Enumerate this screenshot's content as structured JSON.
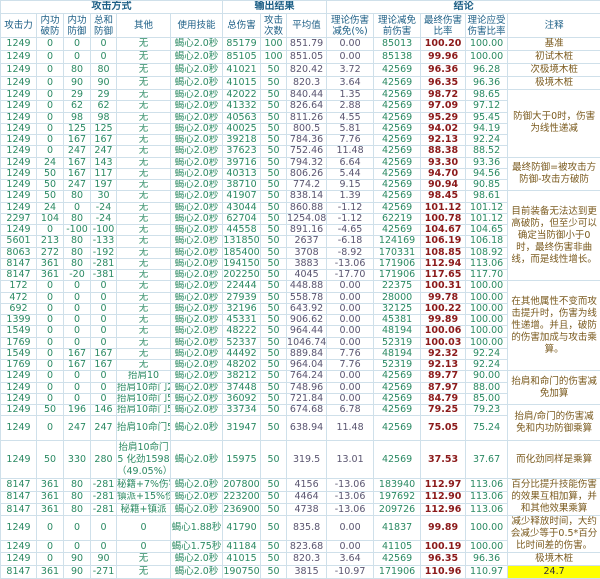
{
  "header": {
    "groups": [
      "攻击方式",
      "输出结果",
      "结论"
    ],
    "columns": [
      "攻击力",
      "内功破防",
      "内功防御",
      "总和防御",
      "其他",
      "使用技能",
      "总伤害",
      "攻击次数",
      "平均值",
      "理论伤害减免(%)",
      "理论减免前伤害",
      "最终伤害比率",
      "理论应受伤害比率",
      "注释"
    ]
  },
  "colors": {
    "header_text": "#1d5f86",
    "data_text": "#2b8a63",
    "final_ratio": "#8b1a1a",
    "note_text": "#7a5a1e",
    "highlight": "#ffff00"
  },
  "rows": [
    [
      "1249",
      "0",
      "0",
      "0",
      "无",
      "蝎心2.0秒",
      "85179",
      "100",
      "851.79",
      "0.00",
      "85013",
      "100.20",
      "100.00"
    ],
    [
      "1249",
      "0",
      "0",
      "0",
      "无",
      "蝎心2.0秒",
      "85105",
      "100",
      "851.05",
      "0.00",
      "85138",
      "99.96",
      "100.00"
    ],
    [
      "1249",
      "0",
      "80",
      "80",
      "无",
      "蝎心2.0秒",
      "41021",
      "50",
      "820.42",
      "3.72",
      "42569",
      "96.36",
      "96.28"
    ],
    [
      "1249",
      "0",
      "90",
      "90",
      "无",
      "蝎心2.0秒",
      "41015",
      "50",
      "820.3",
      "3.64",
      "42569",
      "96.35",
      "96.36"
    ],
    [
      "1249",
      "0",
      "29",
      "29",
      "无",
      "蝎心2.0秒",
      "42022",
      "50",
      "840.44",
      "1.35",
      "42569",
      "98.72",
      "98.65"
    ],
    [
      "1249",
      "0",
      "62",
      "62",
      "无",
      "蝎心2.0秒",
      "41332",
      "50",
      "826.64",
      "2.88",
      "42569",
      "97.09",
      "97.12"
    ],
    [
      "1249",
      "0",
      "98",
      "98",
      "无",
      "蝎心2.0秒",
      "40563",
      "50",
      "811.26",
      "4.55",
      "42569",
      "95.29",
      "95.45"
    ],
    [
      "1249",
      "0",
      "125",
      "125",
      "无",
      "蝎心2.0秒",
      "40025",
      "50",
      "800.5",
      "5.81",
      "42569",
      "94.02",
      "94.19"
    ],
    [
      "1249",
      "0",
      "167",
      "167",
      "无",
      "蝎心2.0秒",
      "39218",
      "50",
      "784.36",
      "7.76",
      "42569",
      "92.13",
      "92.24"
    ],
    [
      "1249",
      "0",
      "247",
      "247",
      "无",
      "蝎心2.0秒",
      "37623",
      "50",
      "752.46",
      "11.48",
      "42569",
      "88.38",
      "88.52"
    ],
    [
      "1249",
      "24",
      "167",
      "143",
      "无",
      "蝎心2.0秒",
      "39716",
      "50",
      "794.32",
      "6.64",
      "42569",
      "93.30",
      "93.36"
    ],
    [
      "1249",
      "50",
      "167",
      "117",
      "无",
      "蝎心2.0秒",
      "40313",
      "50",
      "806.26",
      "5.44",
      "42569",
      "94.70",
      "94.56"
    ],
    [
      "1249",
      "50",
      "247",
      "197",
      "无",
      "蝎心2.0秒",
      "38710",
      "50",
      "774.2",
      "9.15",
      "42569",
      "90.94",
      "90.85"
    ],
    [
      "1249",
      "50",
      "80",
      "30",
      "无",
      "蝎心2.0秒",
      "41907",
      "50",
      "838.14",
      "1.39",
      "42569",
      "98.45",
      "98.61"
    ],
    [
      "1249",
      "24",
      "0",
      "-24",
      "无",
      "蝎心2.0秒",
      "43044",
      "50",
      "860.88",
      "-1.12",
      "42569",
      "101.12",
      "101.12"
    ],
    [
      "2297",
      "104",
      "80",
      "-24",
      "无",
      "蝎心2.0秒",
      "62704",
      "50",
      "1254.08",
      "-1.12",
      "62219",
      "100.78",
      "101.12"
    ],
    [
      "1249",
      "0",
      "-100",
      "-100",
      "无",
      "蝎心2.0秒",
      "44558",
      "50",
      "891.16",
      "-4.65",
      "42569",
      "104.67",
      "104.65"
    ],
    [
      "5601",
      "213",
      "80",
      "-133",
      "无",
      "蝎心2.0秒",
      "131850",
      "50",
      "2637",
      "-6.18",
      "124169",
      "106.19",
      "106.18"
    ],
    [
      "8063",
      "272",
      "80",
      "-192",
      "无",
      "蝎心2.0秒",
      "185400",
      "50",
      "3708",
      "-8.92",
      "170331",
      "108.85",
      "108.92"
    ],
    [
      "8147",
      "361",
      "80",
      "-281",
      "无",
      "蝎心2.0秒",
      "194150",
      "50",
      "3883",
      "-13.06",
      "171906",
      "112.94",
      "113.06"
    ],
    [
      "8147",
      "361",
      "-20",
      "-381",
      "无",
      "蝎心2.0秒",
      "202250",
      "50",
      "4045",
      "-17.70",
      "171906",
      "117.65",
      "117.70"
    ],
    [
      "172",
      "0",
      "0",
      "0",
      "无",
      "蝎心2.0秒",
      "22444",
      "50",
      "448.88",
      "0.00",
      "22375",
      "100.31",
      "100.00"
    ],
    [
      "472",
      "0",
      "0",
      "0",
      "无",
      "蝎心2.0秒",
      "27939",
      "50",
      "558.78",
      "0.00",
      "28000",
      "99.78",
      "100.00"
    ],
    [
      "692",
      "0",
      "0",
      "0",
      "无",
      "蝎心2.0秒",
      "32196",
      "50",
      "643.92",
      "0.00",
      "32125",
      "100.22",
      "100.00"
    ],
    [
      "1399",
      "0",
      "0",
      "0",
      "无",
      "蝎心2.0秒",
      "45331",
      "50",
      "906.62",
      "0.00",
      "45381",
      "99.89",
      "100.00"
    ],
    [
      "1549",
      "0",
      "0",
      "0",
      "无",
      "蝎心2.0秒",
      "48222",
      "50",
      "964.44",
      "0.00",
      "48194",
      "100.06",
      "100.00"
    ],
    [
      "1769",
      "0",
      "0",
      "0",
      "无",
      "蝎心2.0秒",
      "52337",
      "50",
      "1046.74",
      "0.00",
      "52319",
      "100.03",
      "100.00"
    ],
    [
      "1549",
      "0",
      "167",
      "167",
      "无",
      "蝎心2.0秒",
      "44492",
      "50",
      "889.84",
      "7.76",
      "48194",
      "92.32",
      "92.24"
    ],
    [
      "1769",
      "0",
      "167",
      "167",
      "无",
      "蝎心2.0秒",
      "48202",
      "50",
      "964.04",
      "7.76",
      "52319",
      "92.13",
      "92.24"
    ],
    [
      "1249",
      "0",
      "0",
      "0",
      "抬肩10",
      "蝎心2.0秒",
      "38212",
      "50",
      "764.24",
      "0.00",
      "42569",
      "89.77",
      "90.00"
    ],
    [
      "1249",
      "0",
      "0",
      "0",
      "抬肩10命门2",
      "蝎心2.0秒",
      "37448",
      "50",
      "748.96",
      "0.00",
      "42569",
      "87.97",
      "88.00"
    ],
    [
      "1249",
      "0",
      "0",
      "0",
      "抬肩10命门5",
      "蝎心2.0秒",
      "36092",
      "50",
      "721.84",
      "0.00",
      "42569",
      "84.79",
      "85.00"
    ],
    [
      "1249",
      "50",
      "196",
      "146",
      "抬肩10命门5",
      "蝎心2.0秒",
      "33734",
      "50",
      "674.68",
      "6.78",
      "42569",
      "79.25",
      "79.23"
    ],
    [
      "1249",
      "0",
      "247",
      "247",
      "抬肩10命门5",
      "蝎心2.0秒",
      "31947",
      "50",
      "638.94",
      "11.48",
      "42569",
      "75.05",
      "75.24"
    ],
    [
      "1249",
      "50",
      "330",
      "280",
      "抬肩10命门5 化劲1598 （49.05%）",
      "蝎心2.0秒",
      "15975",
      "50",
      "319.5",
      "13.01",
      "42569",
      "37.53",
      "37.67"
    ],
    [
      "8147",
      "361",
      "80",
      "-281",
      "秘籍+7%伤害",
      "蝎心2.0秒",
      "207800",
      "50",
      "4156",
      "-13.06",
      "183940",
      "112.97",
      "113.06"
    ],
    [
      "8147",
      "361",
      "80",
      "-281",
      "镇派+15%伤害",
      "蝎心2.0秒",
      "223200",
      "50",
      "4464",
      "-13.06",
      "197692",
      "112.90",
      "113.06"
    ],
    [
      "8147",
      "361",
      "80",
      "-281",
      "秘籍+镇派",
      "蝎心2.0秒",
      "236900",
      "50",
      "4738",
      "-13.06",
      "209726",
      "112.96",
      "113.06"
    ],
    [
      "1249",
      "0",
      "0",
      "0",
      "0",
      "蝎心1.88秒",
      "41790",
      "50",
      "835.8",
      "0.00",
      "41837",
      "99.89",
      "100.00"
    ],
    [
      "1249",
      "0",
      "0",
      "0",
      "0",
      "蝎心1.75秒",
      "41184",
      "50",
      "823.68",
      "0.00",
      "41105",
      "100.19",
      "100.00"
    ],
    [
      "1249",
      "0",
      "90",
      "90",
      "无",
      "蝎心2.0秒",
      "41015",
      "50",
      "820.3",
      "3.64",
      "42569",
      "96.35",
      "96.36"
    ],
    [
      "8147",
      "361",
      "90",
      "-271",
      "无",
      "蝎心2.0秒",
      "190750",
      "50",
      "3815",
      "-10.97",
      "171906",
      "110.96",
      "110.97"
    ]
  ],
  "notes": [
    {
      "text": "基准",
      "rows": 1
    },
    {
      "text": "初试木桩",
      "rows": 1
    },
    {
      "text": "次极境木桩",
      "rows": 1
    },
    {
      "text": "极境木桩",
      "rows": 1
    },
    {
      "text": "防御大于0时，伤害为线性递减",
      "rows": 6
    },
    {
      "text": "最终防御=被攻击方防御-攻击方破防",
      "rows": 3
    },
    {
      "text": "目前装备无法达到更高破防，但至少可以确定当防御小于0时，最终伤害非曲线，而是线性增长。",
      "rows": 8
    },
    {
      "text": "在其他属性不变而攻击提升时，伤害为线性递增。并且，破防的伤害加成与攻击乘算。",
      "rows": 8
    },
    {
      "text": "抬肩和命门的伤害减免加算",
      "rows": 3
    },
    {
      "text": "抬肩/命门的伤害减免和内功防御乘算",
      "rows": 2
    },
    {
      "text": "而化劲同样是乘算",
      "rows": 1
    },
    {
      "text": "百分比提升技能伤害的效果互相加算，并和其他效果乘算",
      "rows": 3
    },
    {
      "text": "减少释放时间，大约会减少等于0.5*百分比时间差的伤害。",
      "rows": 2
    },
    {
      "text": "极境木桩",
      "rows": 1
    },
    {
      "text": "24.7",
      "rows": 1,
      "highlight": true
    }
  ]
}
